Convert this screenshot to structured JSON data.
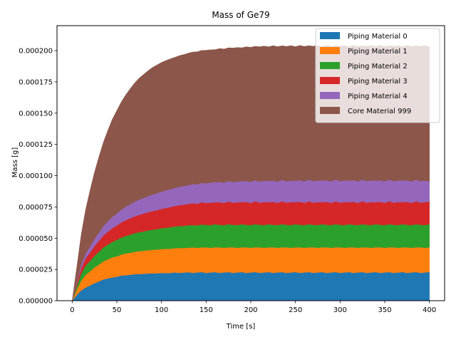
{
  "chart_data": {
    "type": "area",
    "title": "Mass of Ge79",
    "xlabel": "Time [s]",
    "ylabel": "Mass [g]",
    "xlim": [
      -17,
      417
    ],
    "ylim": [
      0,
      0.00022
    ],
    "xticks": [
      0,
      50,
      100,
      150,
      200,
      250,
      300,
      350,
      400
    ],
    "xtick_labels": [
      "0",
      "50",
      "100",
      "150",
      "200",
      "250",
      "300",
      "350",
      "400"
    ],
    "yticks": [
      0,
      2.5e-05,
      5e-05,
      7.5e-05,
      0.0001,
      0.000125,
      0.00015,
      0.000175,
      0.0002
    ],
    "ytick_labels": [
      "0.000000",
      "0.000025",
      "0.000050",
      "0.000075",
      "0.000100",
      "0.000125",
      "0.000150",
      "0.000175",
      "0.000200"
    ],
    "grid": false,
    "legend_position": "upper right",
    "stacked": true,
    "x": [
      0,
      5,
      10,
      15,
      20,
      25,
      30,
      35,
      40,
      45,
      50,
      55,
      60,
      65,
      70,
      75,
      80,
      85,
      90,
      95,
      100,
      105,
      110,
      115,
      120,
      125,
      130,
      135,
      140,
      145,
      150,
      155,
      160,
      165,
      170,
      175,
      180,
      185,
      190,
      195,
      200,
      205,
      210,
      215,
      220,
      225,
      230,
      235,
      240,
      245,
      250,
      255,
      260,
      265,
      270,
      275,
      280,
      285,
      290,
      295,
      300,
      305,
      310,
      315,
      320,
      325,
      330,
      335,
      340,
      345,
      350,
      355,
      360,
      365,
      370,
      375,
      380,
      385,
      390,
      395,
      400
    ],
    "series": [
      {
        "name": "Piping Material 0",
        "color": "#1f77b4",
        "values": [
          0,
          4.5e-06,
          8.1e-06,
          1.05e-05,
          1.22e-05,
          1.4e-05,
          1.54e-05,
          1.7e-05,
          1.79e-05,
          1.86e-05,
          1.92e-05,
          2.01e-05,
          2.04e-05,
          2.07e-05,
          2.12e-05,
          2.13e-05,
          2.15e-05,
          2.18e-05,
          2.18e-05,
          2.19e-05,
          2.22e-05,
          2.21e-05,
          2.22e-05,
          2.26e-05,
          2.22e-05,
          2.25e-05,
          2.28e-05,
          2.22e-05,
          2.26e-05,
          2.29e-05,
          2.22e-05,
          2.26e-05,
          2.29e-05,
          2.22e-05,
          2.26e-05,
          2.29e-05,
          2.22e-05,
          2.26e-05,
          2.29e-05,
          2.22e-05,
          2.26e-05,
          2.29e-05,
          2.22e-05,
          2.26e-05,
          2.29e-05,
          2.22e-05,
          2.26e-05,
          2.29e-05,
          2.22e-05,
          2.26e-05,
          2.29e-05,
          2.22e-05,
          2.26e-05,
          2.29e-05,
          2.22e-05,
          2.26e-05,
          2.29e-05,
          2.22e-05,
          2.26e-05,
          2.29e-05,
          2.22e-05,
          2.26e-05,
          2.29e-05,
          2.22e-05,
          2.26e-05,
          2.29e-05,
          2.22e-05,
          2.26e-05,
          2.29e-05,
          2.22e-05,
          2.26e-05,
          2.29e-05,
          2.22e-05,
          2.26e-05,
          2.29e-05,
          2.22e-05,
          2.26e-05,
          2.29e-05,
          2.22e-05,
          2.26e-05,
          2.29e-05
        ]
      },
      {
        "name": "Piping Material 1",
        "color": "#ff7f0e",
        "values": [
          0,
          4e-06,
          7.8e-06,
          1.02e-05,
          1.12e-05,
          1.26e-05,
          1.35e-05,
          1.45e-05,
          1.52e-05,
          1.6e-05,
          1.63e-05,
          1.68e-05,
          1.74e-05,
          1.76e-05,
          1.79e-05,
          1.83e-05,
          1.84e-05,
          1.86e-05,
          1.89e-05,
          1.9e-05,
          1.91e-05,
          1.94e-05,
          1.94e-05,
          1.94e-05,
          2e-05,
          1.96e-05,
          1.96e-05,
          2.04e-05,
          1.97e-05,
          1.97e-05,
          2.05e-05,
          1.97e-05,
          1.98e-05,
          2.05e-05,
          1.97e-05,
          1.98e-05,
          2.05e-05,
          1.97e-05,
          1.98e-05,
          2.05e-05,
          1.97e-05,
          1.98e-05,
          2.05e-05,
          1.97e-05,
          1.98e-05,
          2.05e-05,
          1.97e-05,
          1.98e-05,
          2.05e-05,
          1.97e-05,
          1.98e-05,
          2.05e-05,
          1.97e-05,
          1.98e-05,
          2.05e-05,
          1.97e-05,
          1.98e-05,
          2.05e-05,
          1.97e-05,
          1.98e-05,
          2.05e-05,
          1.97e-05,
          1.98e-05,
          2.05e-05,
          1.97e-05,
          1.98e-05,
          2.05e-05,
          1.97e-05,
          1.98e-05,
          2.05e-05,
          1.97e-05,
          1.98e-05,
          2.05e-05,
          1.97e-05,
          1.98e-05,
          2.05e-05,
          1.97e-05,
          1.98e-05,
          2.05e-05,
          1.97e-05,
          1.98e-05
        ]
      },
      {
        "name": "Piping Material 2",
        "color": "#2ca02c",
        "values": [
          0,
          3e-06,
          5.6e-06,
          7.3e-06,
          8.3e-06,
          9.3e-06,
          1.02e-05,
          1.11e-05,
          1.18e-05,
          1.25e-05,
          1.31e-05,
          1.36e-05,
          1.4e-05,
          1.45e-05,
          1.49e-05,
          1.52e-05,
          1.55e-05,
          1.58e-05,
          1.61e-05,
          1.63e-05,
          1.67e-05,
          1.68e-05,
          1.72e-05,
          1.73e-05,
          1.76e-05,
          1.77e-05,
          1.8e-05,
          1.78e-05,
          1.8e-05,
          1.83e-05,
          1.8e-05,
          1.81e-05,
          1.85e-05,
          1.8e-05,
          1.82e-05,
          1.85e-05,
          1.8e-05,
          1.82e-05,
          1.85e-05,
          1.8e-05,
          1.82e-05,
          1.85e-05,
          1.8e-05,
          1.82e-05,
          1.85e-05,
          1.8e-05,
          1.82e-05,
          1.85e-05,
          1.8e-05,
          1.82e-05,
          1.85e-05,
          1.8e-05,
          1.82e-05,
          1.85e-05,
          1.8e-05,
          1.82e-05,
          1.85e-05,
          1.8e-05,
          1.82e-05,
          1.85e-05,
          1.8e-05,
          1.82e-05,
          1.85e-05,
          1.8e-05,
          1.82e-05,
          1.85e-05,
          1.8e-05,
          1.82e-05,
          1.85e-05,
          1.8e-05,
          1.82e-05,
          1.85e-05,
          1.8e-05,
          1.82e-05,
          1.85e-05,
          1.8e-05,
          1.82e-05,
          1.85e-05,
          1.8e-05,
          1.82e-05,
          1.85e-05
        ]
      },
      {
        "name": "Piping Material 3",
        "color": "#d62728",
        "values": [
          0,
          2.2e-06,
          4.3e-06,
          5.8e-06,
          6.8e-06,
          7.8e-06,
          8.7e-06,
          9.6e-06,
          1.03e-05,
          1.09e-05,
          1.15e-05,
          1.21e-05,
          1.26e-05,
          1.31e-05,
          1.35e-05,
          1.39e-05,
          1.42e-05,
          1.46e-05,
          1.49e-05,
          1.52e-05,
          1.55e-05,
          1.58e-05,
          1.61e-05,
          1.64e-05,
          1.66e-05,
          1.7e-05,
          1.7e-05,
          1.75e-05,
          1.72e-05,
          1.78e-05,
          1.74e-05,
          1.8e-05,
          1.75e-05,
          1.81e-05,
          1.76e-05,
          1.82e-05,
          1.76e-05,
          1.83e-05,
          1.77e-05,
          1.83e-05,
          1.77e-05,
          1.84e-05,
          1.77e-05,
          1.84e-05,
          1.77e-05,
          1.84e-05,
          1.77e-05,
          1.84e-05,
          1.77e-05,
          1.84e-05,
          1.77e-05,
          1.84e-05,
          1.77e-05,
          1.84e-05,
          1.77e-05,
          1.84e-05,
          1.77e-05,
          1.84e-05,
          1.77e-05,
          1.84e-05,
          1.77e-05,
          1.84e-05,
          1.77e-05,
          1.84e-05,
          1.77e-05,
          1.84e-05,
          1.77e-05,
          1.84e-05,
          1.77e-05,
          1.84e-05,
          1.77e-05,
          1.84e-05,
          1.77e-05,
          1.84e-05,
          1.77e-05,
          1.84e-05,
          1.77e-05,
          1.84e-05,
          1.77e-05,
          1.84e-05,
          1.81e-05
        ]
      },
      {
        "name": "Piping Material 4",
        "color": "#9467bd",
        "values": [
          0,
          1.2e-06,
          2.6e-06,
          3.8e-06,
          4.8e-06,
          5.8e-06,
          6.7e-06,
          7.5e-06,
          8.3e-06,
          9e-06,
          9.6e-06,
          1.02e-05,
          1.08e-05,
          1.12e-05,
          1.17e-05,
          1.21e-05,
          1.25e-05,
          1.28e-05,
          1.32e-05,
          1.35e-05,
          1.37e-05,
          1.4e-05,
          1.43e-05,
          1.45e-05,
          1.47e-05,
          1.49e-05,
          1.51e-05,
          1.53e-05,
          1.55e-05,
          1.56e-05,
          1.58e-05,
          1.6e-05,
          1.61e-05,
          1.62e-05,
          1.63e-05,
          1.64e-05,
          1.65e-05,
          1.66e-05,
          1.67e-05,
          1.67e-05,
          1.68e-05,
          1.68e-05,
          1.69e-05,
          1.69e-05,
          1.7e-05,
          1.7e-05,
          1.7e-05,
          1.71e-05,
          1.71e-05,
          1.71e-05,
          1.71e-05,
          1.72e-05,
          1.72e-05,
          1.72e-05,
          1.72e-05,
          1.72e-05,
          1.72e-05,
          1.72e-05,
          1.72e-05,
          1.72e-05,
          1.72e-05,
          1.72e-05,
          1.72e-05,
          1.72e-05,
          1.72e-05,
          1.72e-05,
          1.72e-05,
          1.72e-05,
          1.72e-05,
          1.72e-05,
          1.72e-05,
          1.72e-05,
          1.72e-05,
          1.72e-05,
          1.72e-05,
          1.72e-05,
          1.72e-05,
          1.72e-05,
          1.72e-05,
          1.72e-05,
          1.6e-05
        ]
      },
      {
        "name": "Core Material 999",
        "color": "#8c564b",
        "values": [
          0,
          1.11e-05,
          2.39e-05,
          3.51e-05,
          4.49e-05,
          5.33e-05,
          6.07e-05,
          6.71e-05,
          7.29e-05,
          7.82e-05,
          8.24e-05,
          8.62e-05,
          8.95e-05,
          9.25e-05,
          9.5e-05,
          9.72e-05,
          9.89e-05,
          0.0001004,
          0.0001017,
          0.0001027,
          0.0001034,
          0.000104,
          0.0001043,
          0.0001045,
          0.0001049,
          0.0001052,
          0.0001055,
          0.0001057,
          0.0001061,
          0.0001059,
          0.0001064,
          0.0001063,
          0.000106,
          0.0001067,
          0.0001069,
          0.0001065,
          0.0001073,
          0.0001071,
          0.0001067,
          0.0001074,
          0.0001077,
          0.0001071,
          0.0001078,
          0.0001079,
          0.0001072,
          0.0001079,
          0.000108,
          0.0001072,
          0.0001079,
          0.000108,
          0.0001072,
          0.0001079,
          0.000108,
          0.0001072,
          0.0001079,
          0.000108,
          0.0001072,
          0.0001079,
          0.000108,
          0.0001072,
          0.0001079,
          0.000108,
          0.0001072,
          0.0001079,
          0.000108,
          0.0001072,
          0.0001079,
          0.000108,
          0.0001072,
          0.0001079,
          0.000108,
          0.0001072,
          0.0001079,
          0.000108,
          0.0001072,
          0.0001079,
          0.000108,
          0.0001072,
          0.0001079,
          0.000108,
          0.0001076
        ]
      }
    ]
  }
}
